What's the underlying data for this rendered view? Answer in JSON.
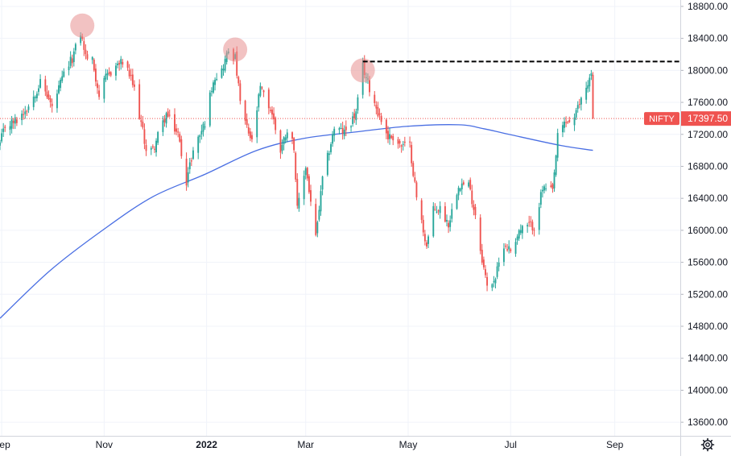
{
  "chart_data": {
    "type": "candlestick",
    "symbol": "NIFTY",
    "last_price": "17397.50",
    "title": "",
    "xlabel": "",
    "ylabel": "",
    "y_ticks": [
      "13600.00",
      "14000.00",
      "14400.00",
      "14800.00",
      "15200.00",
      "15600.00",
      "16000.00",
      "16400.00",
      "16800.00",
      "17200.00",
      "17600.00",
      "18000.00",
      "18400.00",
      "18800.00"
    ],
    "ylim": [
      13430,
      18880
    ],
    "x_ticks": [
      "Sep",
      "Nov",
      "2022",
      "Mar",
      "May",
      "Jul",
      "Sep"
    ],
    "x_tick_dates": [
      "2021-09-01",
      "2021-11-01",
      "2022-01-01",
      "2022-03-01",
      "2022-05-01",
      "2022-07-01",
      "2022-09-01"
    ],
    "xlim": [
      "2021-08-31",
      "2022-10-10"
    ],
    "grid": true,
    "colors": {
      "up": "#26a69a",
      "down": "#ef5350",
      "moving_average": "#4a6fe3",
      "last_price_badge": "#ef5350",
      "highlight_circle": "#e88f8f",
      "resistance_line": "#000000",
      "grid": "#f0f3fa",
      "text": "#131722"
    },
    "moving_average": {
      "points": [
        [
          "2021-08-31",
          14900
        ],
        [
          "2021-09-30",
          15500
        ],
        [
          "2021-10-31",
          16000
        ],
        [
          "2021-11-30",
          16420
        ],
        [
          "2021-12-31",
          16700
        ],
        [
          "2022-01-31",
          17000
        ],
        [
          "2022-02-28",
          17150
        ],
        [
          "2022-03-31",
          17230
        ],
        [
          "2022-04-30",
          17300
        ],
        [
          "2022-05-31",
          17320
        ],
        [
          "2022-06-15",
          17270
        ],
        [
          "2022-06-30",
          17200
        ],
        [
          "2022-07-31",
          17060
        ],
        [
          "2022-08-19",
          17000
        ]
      ]
    },
    "highlights": [
      {
        "date": "2021-10-19",
        "value": 18560
      },
      {
        "date": "2022-01-18",
        "value": 18260
      },
      {
        "date": "2022-04-04",
        "value": 18000
      }
    ],
    "resistance_line": {
      "value": 18110,
      "from": "2022-04-04",
      "to": "2022-10-10"
    },
    "anchors": [
      [
        "2021-08-31",
        17080
      ],
      [
        "2021-09-03",
        17300
      ],
      [
        "2021-09-10",
        17380
      ],
      [
        "2021-09-17",
        17560
      ],
      [
        "2021-09-24",
        17850
      ],
      [
        "2021-09-28",
        17690
      ],
      [
        "2021-10-01",
        17530
      ],
      [
        "2021-10-08",
        17950
      ],
      [
        "2021-10-13",
        18150
      ],
      [
        "2021-10-18",
        18470
      ],
      [
        "2021-10-21",
        18180
      ],
      [
        "2021-10-25",
        18120
      ],
      [
        "2021-10-29",
        17690
      ],
      [
        "2021-11-02",
        17900
      ],
      [
        "2021-11-08",
        18060
      ],
      [
        "2021-11-12",
        18100
      ],
      [
        "2021-11-16",
        17940
      ],
      [
        "2021-11-19",
        17760
      ],
      [
        "2021-11-26",
        17020
      ],
      [
        "2021-11-30",
        17000
      ],
      [
        "2021-12-03",
        17180
      ],
      [
        "2021-12-08",
        17450
      ],
      [
        "2021-12-15",
        17200
      ],
      [
        "2021-12-20",
        16620
      ],
      [
        "2021-12-24",
        17000
      ],
      [
        "2021-12-31",
        17350
      ],
      [
        "2022-01-05",
        17900
      ],
      [
        "2022-01-10",
        18000
      ],
      [
        "2022-01-14",
        18250
      ],
      [
        "2022-01-18",
        18150
      ],
      [
        "2022-01-21",
        17600
      ],
      [
        "2022-01-25",
        17270
      ],
      [
        "2022-01-28",
        17100
      ],
      [
        "2022-02-02",
        17780
      ],
      [
        "2022-02-09",
        17460
      ],
      [
        "2022-02-14",
        17000
      ],
      [
        "2022-02-18",
        17270
      ],
      [
        "2022-02-22",
        17060
      ],
      [
        "2022-02-24",
        16250
      ],
      [
        "2022-03-01",
        16800
      ],
      [
        "2022-03-07",
        15900
      ],
      [
        "2022-03-11",
        16630
      ],
      [
        "2022-03-18",
        17280
      ],
      [
        "2022-03-24",
        17220
      ],
      [
        "2022-03-31",
        17460
      ],
      [
        "2022-04-04",
        18050
      ],
      [
        "2022-04-08",
        17780
      ],
      [
        "2022-04-13",
        17480
      ],
      [
        "2022-04-19",
        17170
      ],
      [
        "2022-04-22",
        17170
      ],
      [
        "2022-04-27",
        17050
      ],
      [
        "2022-05-02",
        17060
      ],
      [
        "2022-05-06",
        16410
      ],
      [
        "2022-05-12",
        15800
      ],
      [
        "2022-05-16",
        16250
      ],
      [
        "2022-05-20",
        16270
      ],
      [
        "2022-05-25",
        16080
      ],
      [
        "2022-05-31",
        16580
      ],
      [
        "2022-06-06",
        16570
      ],
      [
        "2022-06-10",
        16200
      ],
      [
        "2022-06-13",
        15770
      ],
      [
        "2022-06-17",
        15290
      ],
      [
        "2022-06-22",
        15410
      ],
      [
        "2022-06-27",
        15830
      ],
      [
        "2022-07-01",
        15750
      ],
      [
        "2022-07-06",
        15990
      ],
      [
        "2022-07-12",
        16060
      ],
      [
        "2022-07-15",
        16050
      ],
      [
        "2022-07-20",
        16520
      ],
      [
        "2022-07-26",
        16480
      ],
      [
        "2022-07-29",
        17160
      ],
      [
        "2022-08-02",
        17340
      ],
      [
        "2022-08-08",
        17400
      ],
      [
        "2022-08-12",
        17650
      ],
      [
        "2022-08-18",
        17950
      ],
      [
        "2022-08-19",
        17397.5
      ]
    ]
  },
  "ui": {
    "settings_icon": "gear-icon"
  }
}
